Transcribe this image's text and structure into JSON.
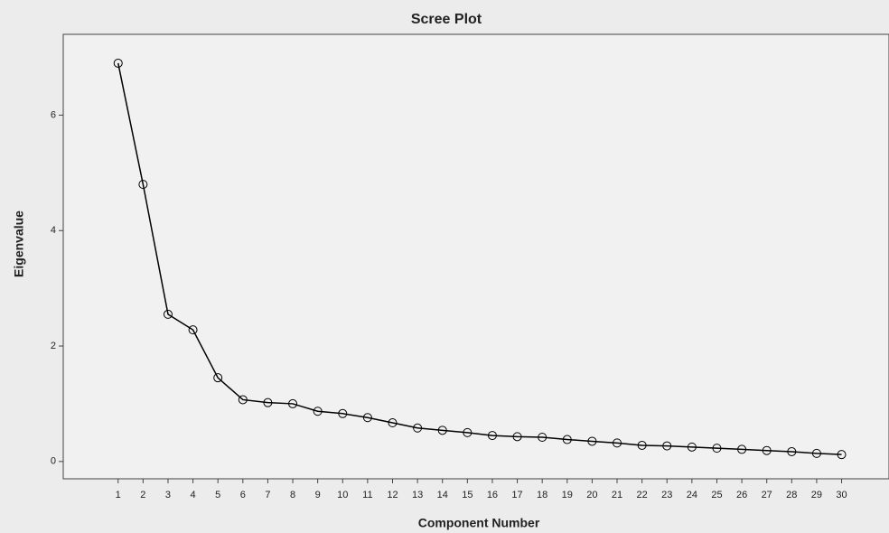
{
  "chart_data": {
    "type": "line",
    "title": "Scree Plot",
    "x_label": "Component Number",
    "y_label": "Eigenvalue",
    "x": [
      1,
      2,
      3,
      4,
      5,
      6,
      7,
      8,
      9,
      10,
      11,
      12,
      13,
      14,
      15,
      16,
      17,
      18,
      19,
      20,
      21,
      22,
      23,
      24,
      25,
      26,
      27,
      28,
      29,
      30
    ],
    "series": [
      {
        "name": "Eigenvalue",
        "color": "#000000",
        "values": [
          6.9,
          4.8,
          2.55,
          2.28,
          1.45,
          1.07,
          1.02,
          1.0,
          0.87,
          0.83,
          0.76,
          0.67,
          0.58,
          0.54,
          0.5,
          0.45,
          0.43,
          0.42,
          0.38,
          0.35,
          0.32,
          0.28,
          0.27,
          0.25,
          0.23,
          0.21,
          0.19,
          0.17,
          0.14,
          0.12
        ]
      }
    ],
    "xlim": [
      -1.2,
      31.9
    ],
    "xticks": [
      1,
      2,
      3,
      4,
      5,
      6,
      7,
      8,
      9,
      10,
      11,
      12,
      13,
      14,
      15,
      16,
      17,
      18,
      19,
      20,
      21,
      22,
      23,
      24,
      25,
      26,
      27,
      28,
      29,
      30
    ],
    "ylim": [
      -0.3,
      7.4
    ],
    "yticks": [
      0,
      2,
      4,
      6
    ],
    "grid": false
  }
}
